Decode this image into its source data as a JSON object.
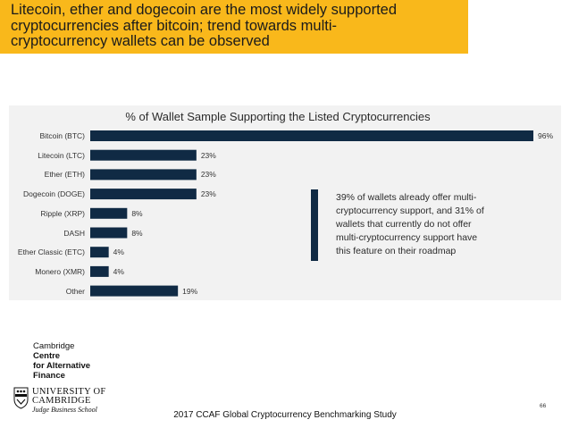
{
  "banner": {
    "lines": [
      "Litecoin, ether and dogecoin are the most widely supported",
      "cryptocurrencies after bitcoin; trend towards multi-",
      "cryptocurrency wallets can be observed"
    ]
  },
  "chart_data": {
    "type": "bar",
    "orientation": "horizontal",
    "title": "% of Wallet Sample Supporting the Listed Cryptocurrencies",
    "categories": [
      "Bitcoin (BTC)",
      "Litecoin (LTC)",
      "Ether (ETH)",
      "Dogecoin (DOGE)",
      "Ripple (XRP)",
      "DASH",
      "Ether Classic (ETC)",
      "Monero (XMR)",
      "Other"
    ],
    "values": [
      96,
      23,
      23,
      23,
      8,
      8,
      4,
      4,
      19
    ],
    "value_labels": [
      "96%",
      "23%",
      "23%",
      "23%",
      "8%",
      "8%",
      "4%",
      "4%",
      "19%"
    ],
    "xlabel": "",
    "ylabel": "",
    "xlim": [
      0,
      100
    ],
    "bar_color": "#102a44"
  },
  "callout": {
    "lines": [
      "39% of wallets already offer multi-",
      "cryptocurrency support, and 31% of",
      "wallets that currently do not offer",
      "multi-cryptocurrency support have",
      "this feature on their roadmap"
    ]
  },
  "ccaf_logo": {
    "line1": "Cambridge",
    "line2": "Centre",
    "line3": "for Alternative",
    "line4": "Finance"
  },
  "university_logo": {
    "line1": "UNIVERSITY OF",
    "line2": "CAMBRIDGE",
    "line3": "Judge Business School"
  },
  "footer": {
    "text": "2017 CCAF Global Cryptocurrency Benchmarking Study",
    "page_number": "66"
  },
  "colors": {
    "banner": "#f9b81b",
    "panel": "#f2f2f2",
    "bar": "#102a44"
  }
}
